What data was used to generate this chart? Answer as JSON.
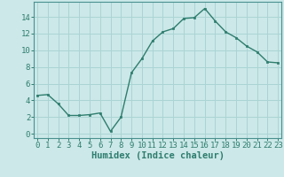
{
  "x": [
    0,
    1,
    2,
    3,
    4,
    5,
    6,
    7,
    8,
    9,
    10,
    11,
    12,
    13,
    14,
    15,
    16,
    17,
    18,
    19,
    20,
    21,
    22,
    23
  ],
  "y": [
    4.6,
    4.7,
    3.6,
    2.2,
    2.2,
    2.3,
    2.5,
    0.3,
    2.0,
    7.3,
    9.0,
    11.1,
    12.2,
    12.6,
    13.8,
    13.9,
    15.0,
    13.5,
    12.2,
    11.5,
    10.5,
    9.8,
    8.6,
    8.5
  ],
  "xlabel": "Humidex (Indice chaleur)",
  "line_color": "#2e7d6e",
  "marker_color": "#2e7d6e",
  "bg_color": "#cce8e8",
  "grid_color": "#aad4d4",
  "axis_color": "#2e7d6e",
  "spine_color": "#4a9090",
  "ylim": [
    -0.5,
    15.8
  ],
  "xlim": [
    -0.3,
    23.3
  ],
  "yticks": [
    0,
    2,
    4,
    6,
    8,
    10,
    12,
    14
  ],
  "xticks": [
    0,
    1,
    2,
    3,
    4,
    5,
    6,
    7,
    8,
    9,
    10,
    11,
    12,
    13,
    14,
    15,
    16,
    17,
    18,
    19,
    20,
    21,
    22,
    23
  ],
  "xlabel_fontsize": 7.5,
  "tick_fontsize": 6.5
}
